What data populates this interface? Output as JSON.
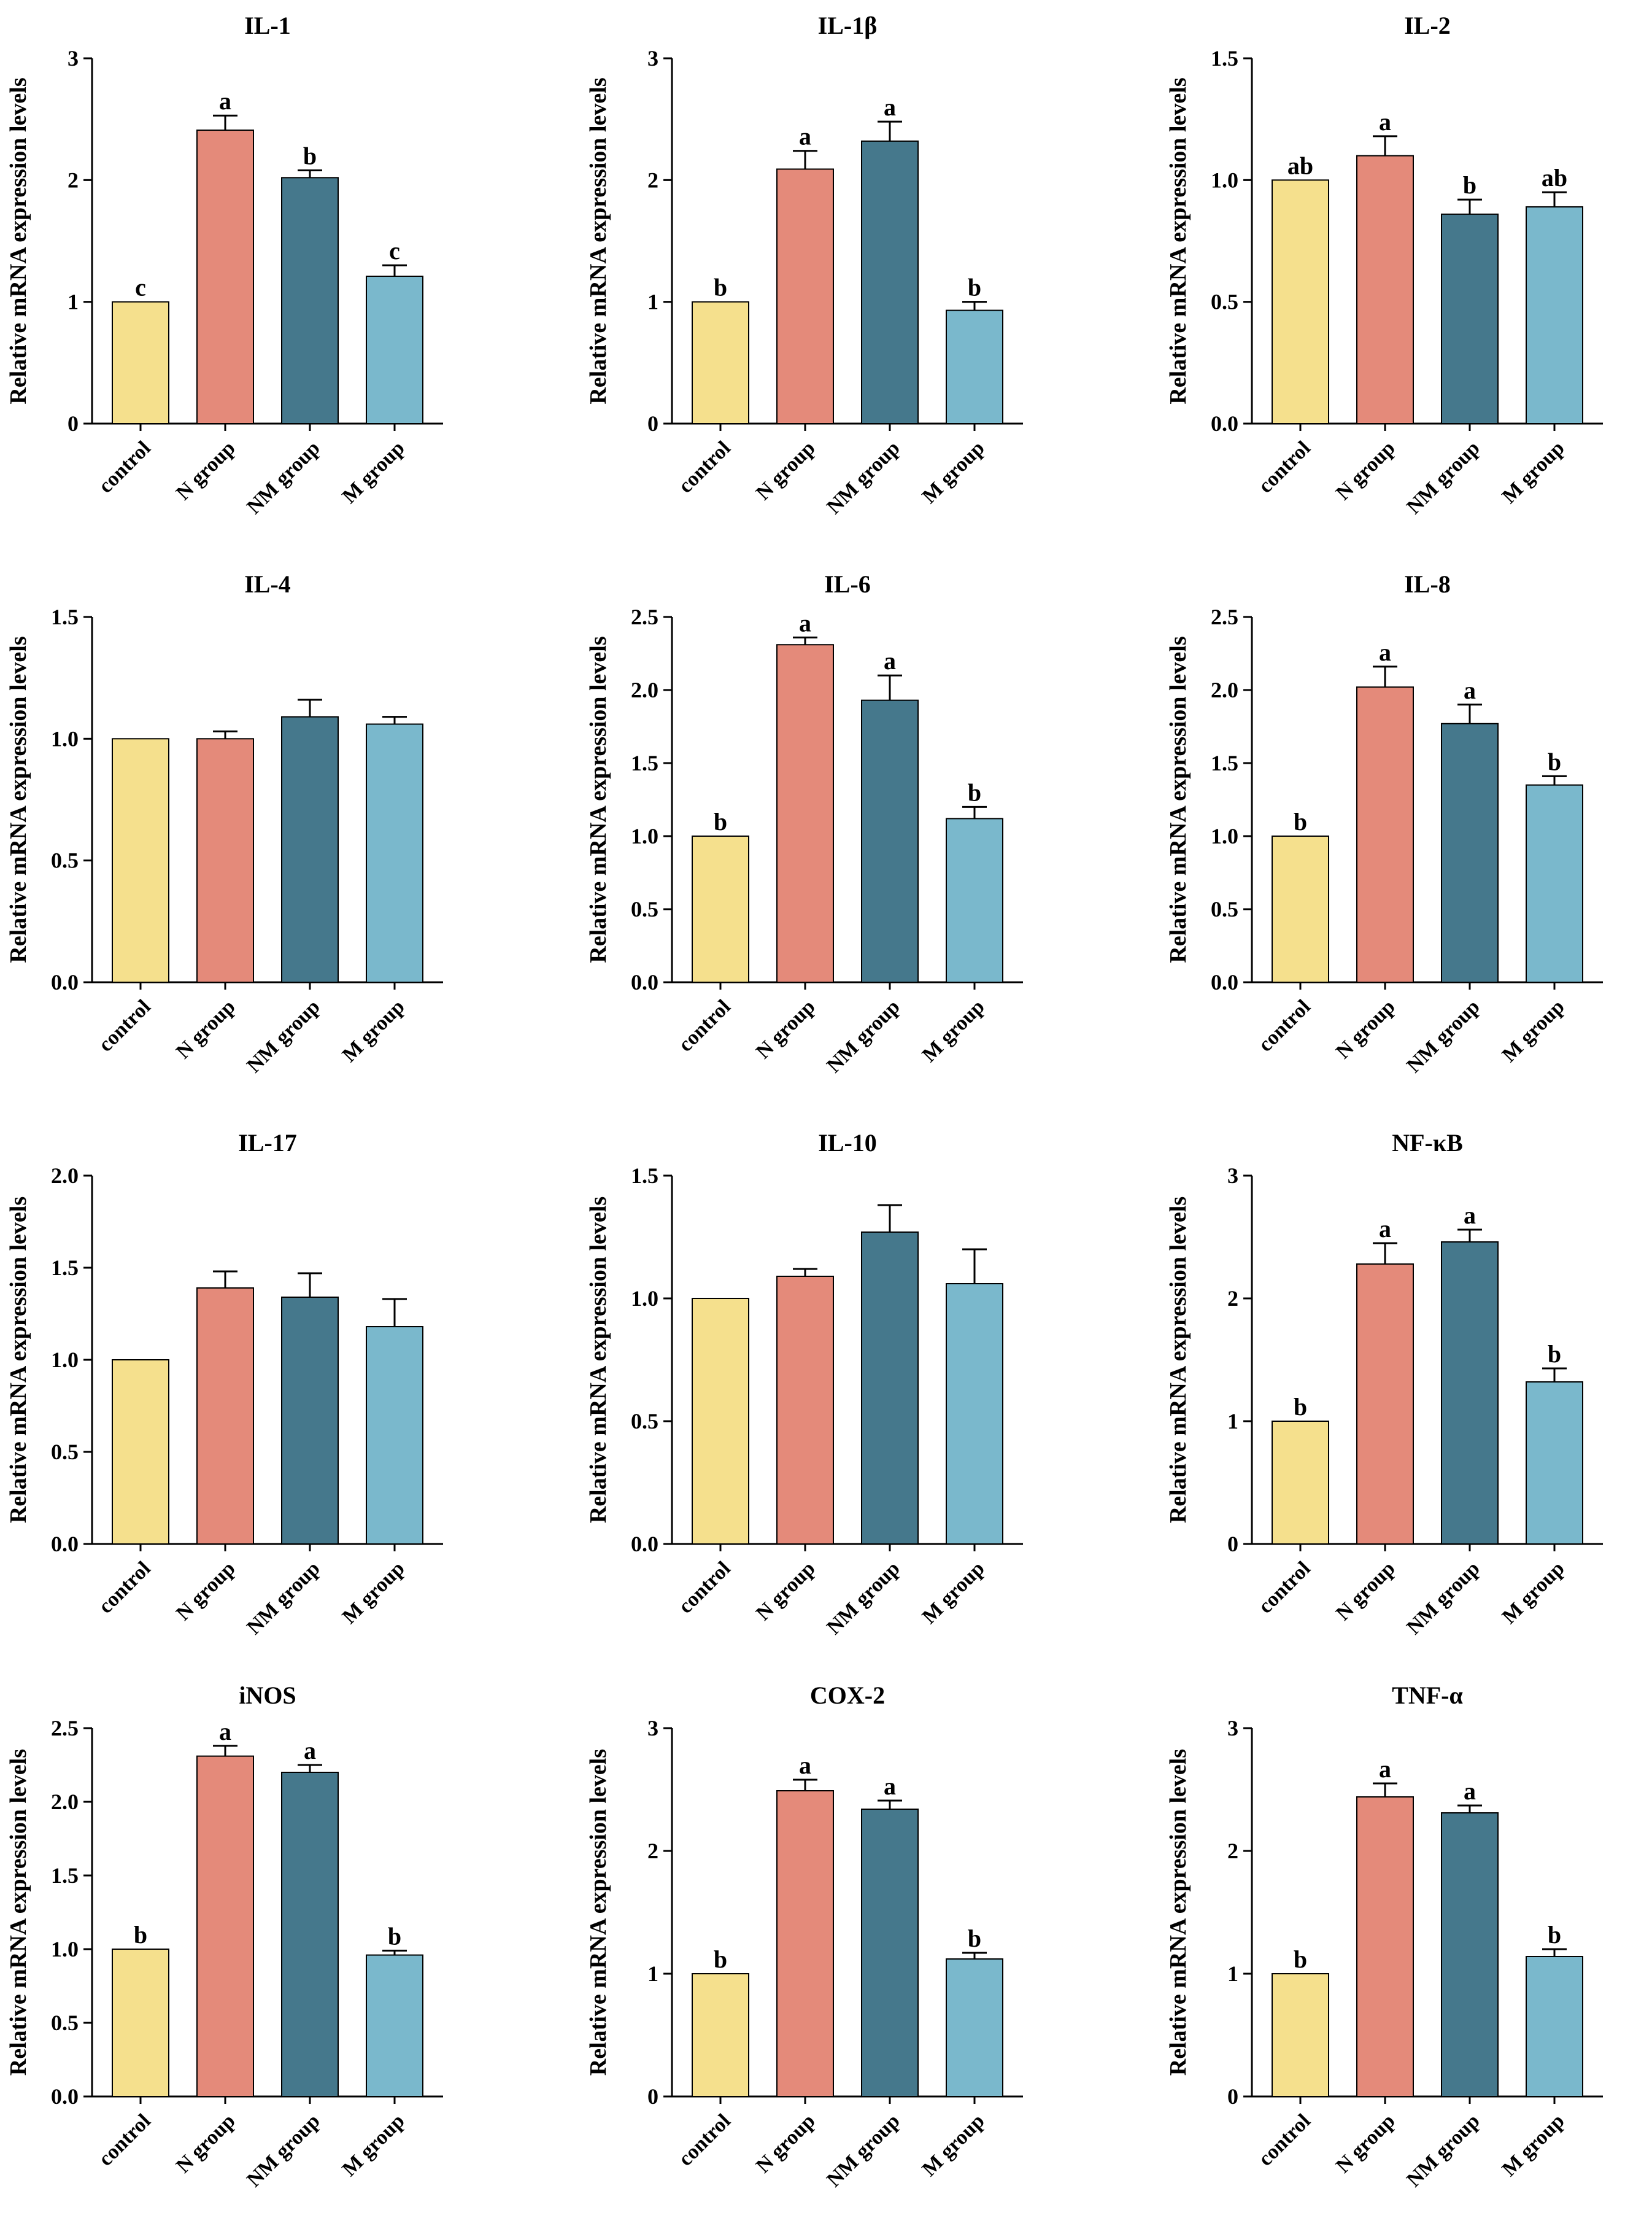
{
  "figure": {
    "categories": [
      "control",
      "N group",
      "NM group",
      "M group"
    ],
    "ylabel": "Relative mRNA expression levels",
    "colors": [
      "#f5e08d",
      "#e48a7a",
      "#45788c",
      "#7ab8cc"
    ]
  },
  "chart_data": [
    {
      "type": "bar",
      "title": "IL-1",
      "ylim": [
        0,
        3
      ],
      "ticks": [
        "0",
        "1",
        "2",
        "3"
      ],
      "values": [
        1.0,
        2.41,
        2.02,
        1.21
      ],
      "errors": [
        0,
        0.12,
        0.06,
        0.09
      ],
      "labels": [
        "c",
        "a",
        "b",
        "c"
      ]
    },
    {
      "type": "bar",
      "title": "IL-1β",
      "ylim": [
        0,
        3
      ],
      "ticks": [
        "0",
        "1",
        "2",
        "3"
      ],
      "values": [
        1.0,
        2.09,
        2.32,
        0.93
      ],
      "errors": [
        0,
        0.15,
        0.16,
        0.07
      ],
      "labels": [
        "b",
        "a",
        "a",
        "b"
      ]
    },
    {
      "type": "bar",
      "title": "IL-2",
      "ylim": [
        0,
        1.5
      ],
      "ticks": [
        "0.0",
        "0.5",
        "1.0",
        "1.5"
      ],
      "values": [
        1.0,
        1.1,
        0.86,
        0.89
      ],
      "errors": [
        0,
        0.08,
        0.06,
        0.06
      ],
      "labels": [
        "ab",
        "a",
        "b",
        "ab"
      ]
    },
    {
      "type": "bar",
      "title": "IL-4",
      "ylim": [
        0,
        1.5
      ],
      "ticks": [
        "0.0",
        "0.5",
        "1.0",
        "1.5"
      ],
      "values": [
        1.0,
        1.0,
        1.09,
        1.06
      ],
      "errors": [
        0,
        0.03,
        0.07,
        0.03
      ],
      "labels": [
        "",
        "",
        "",
        ""
      ]
    },
    {
      "type": "bar",
      "title": "IL-6",
      "ylim": [
        0,
        2.5
      ],
      "ticks": [
        "0.0",
        "0.5",
        "1.0",
        "1.5",
        "2.0",
        "2.5"
      ],
      "values": [
        1.0,
        2.31,
        1.93,
        1.12
      ],
      "errors": [
        0,
        0.05,
        0.17,
        0.08
      ],
      "labels": [
        "b",
        "a",
        "a",
        "b"
      ]
    },
    {
      "type": "bar",
      "title": "IL-8",
      "ylim": [
        0,
        2.5
      ],
      "ticks": [
        "0.0",
        "0.5",
        "1.0",
        "1.5",
        "2.0",
        "2.5"
      ],
      "values": [
        1.0,
        2.02,
        1.77,
        1.35
      ],
      "errors": [
        0,
        0.14,
        0.13,
        0.06
      ],
      "labels": [
        "b",
        "a",
        "a",
        "b"
      ]
    },
    {
      "type": "bar",
      "title": "IL-17",
      "ylim": [
        0,
        2.0
      ],
      "ticks": [
        "0.0",
        "0.5",
        "1.0",
        "1.5",
        "2.0"
      ],
      "values": [
        1.0,
        1.39,
        1.34,
        1.18
      ],
      "errors": [
        0,
        0.09,
        0.13,
        0.15
      ],
      "labels": [
        "",
        "",
        "",
        ""
      ]
    },
    {
      "type": "bar",
      "title": "IL-10",
      "ylim": [
        0,
        1.5
      ],
      "ticks": [
        "0.0",
        "0.5",
        "1.0",
        "1.5"
      ],
      "values": [
        1.0,
        1.09,
        1.27,
        1.06
      ],
      "errors": [
        0,
        0.03,
        0.11,
        0.14
      ],
      "labels": [
        "",
        "",
        "",
        ""
      ]
    },
    {
      "type": "bar",
      "title": "NF-κB",
      "ylim": [
        0,
        3
      ],
      "ticks": [
        "0",
        "1",
        "2",
        "3"
      ],
      "values": [
        1.0,
        2.28,
        2.46,
        1.32
      ],
      "errors": [
        0,
        0.17,
        0.1,
        0.11
      ],
      "labels": [
        "b",
        "a",
        "a",
        "b"
      ]
    },
    {
      "type": "bar",
      "title": "iNOS",
      "ylim": [
        0,
        2.5
      ],
      "ticks": [
        "0.0",
        "0.5",
        "1.0",
        "1.5",
        "2.0",
        "2.5"
      ],
      "values": [
        1.0,
        2.31,
        2.2,
        0.96
      ],
      "errors": [
        0,
        0.07,
        0.05,
        0.03
      ],
      "labels": [
        "b",
        "a",
        "a",
        "b"
      ]
    },
    {
      "type": "bar",
      "title": "COX-2",
      "ylim": [
        0,
        3
      ],
      "ticks": [
        "0",
        "1",
        "2",
        "3"
      ],
      "values": [
        1.0,
        2.49,
        2.34,
        1.12
      ],
      "errors": [
        0,
        0.09,
        0.07,
        0.05
      ],
      "labels": [
        "b",
        "a",
        "a",
        "b"
      ]
    },
    {
      "type": "bar",
      "title": "TNF-α",
      "ylim": [
        0,
        3
      ],
      "ticks": [
        "0",
        "1",
        "2",
        "3"
      ],
      "values": [
        1.0,
        2.44,
        2.31,
        1.14
      ],
      "errors": [
        0,
        0.11,
        0.06,
        0.06
      ],
      "labels": [
        "b",
        "a",
        "a",
        "b"
      ]
    }
  ]
}
